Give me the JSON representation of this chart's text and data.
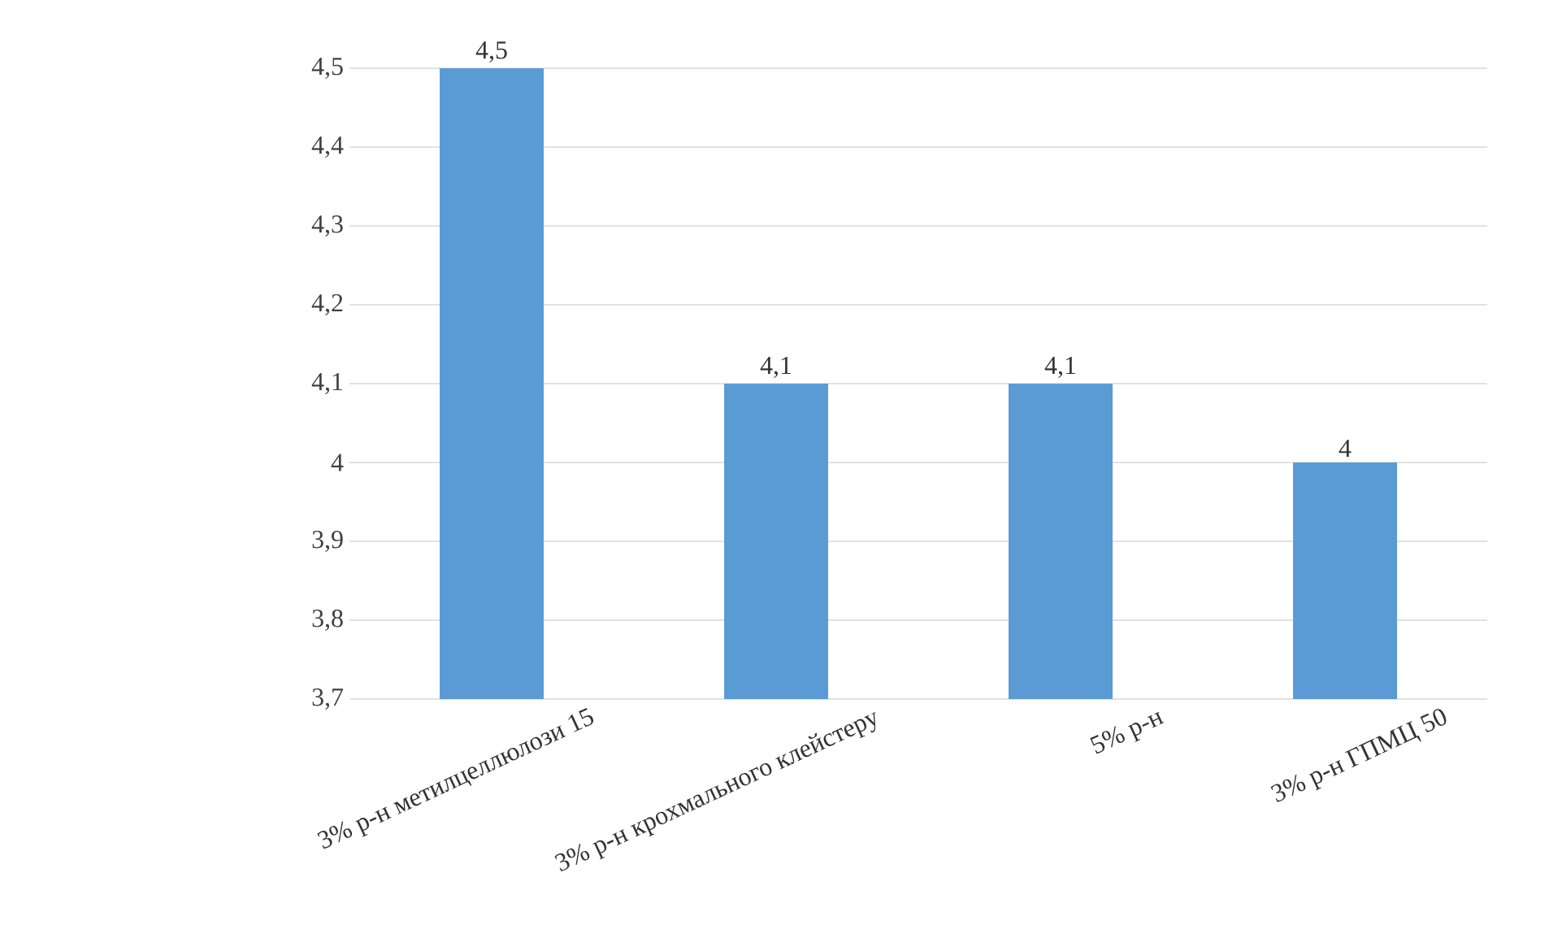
{
  "chart_data": {
    "type": "bar",
    "categories": [
      "3% р-н метилцеллюлози 15",
      "3% р-н крохмального клейстеру",
      "5% р-н",
      "3% р-н ГПМЦ 50"
    ],
    "values": [
      4.5,
      4.1,
      4.1,
      4.0
    ],
    "value_labels": [
      "4,5",
      "4,1",
      "4,1",
      "4"
    ],
    "color": "#5b9bd5",
    "ylim": [
      3.7,
      4.5
    ],
    "yticks": [
      {
        "value": 3.7,
        "label": "3,7"
      },
      {
        "value": 3.8,
        "label": "3,8"
      },
      {
        "value": 3.9,
        "label": "3,9"
      },
      {
        "value": 4.0,
        "label": "4"
      },
      {
        "value": 4.1,
        "label": "4,1"
      },
      {
        "value": 4.2,
        "label": "4,2"
      },
      {
        "value": 4.3,
        "label": "4,3"
      },
      {
        "value": 4.4,
        "label": "4,4"
      },
      {
        "value": 4.5,
        "label": "4,5"
      }
    ],
    "grid": "y"
  }
}
